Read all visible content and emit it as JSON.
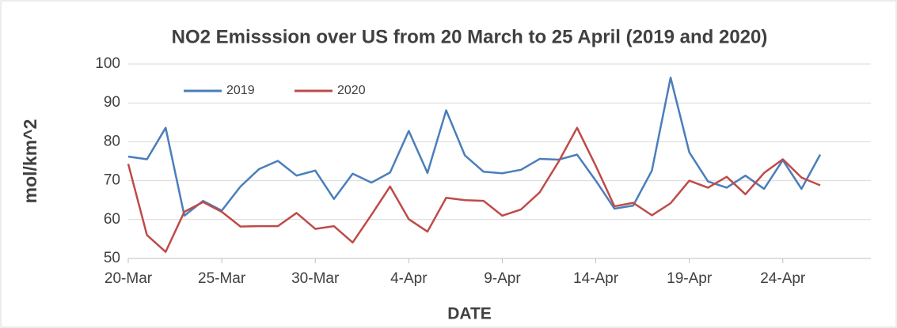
{
  "chart_data": {
    "type": "line",
    "title": "NO2 Emisssion over US from 20 March to 25 April (2019 and 2020)",
    "x_label": "DATE",
    "y_label": "mol/km^2",
    "categories": [
      "20-Mar",
      null,
      null,
      null,
      null,
      "25-Mar",
      null,
      null,
      null,
      null,
      "30-Mar",
      null,
      null,
      null,
      null,
      "4-Apr",
      null,
      null,
      null,
      null,
      "9-Apr",
      null,
      null,
      null,
      null,
      "14-Apr",
      null,
      null,
      null,
      null,
      "19-Apr",
      null,
      null,
      null,
      null,
      "24-Apr",
      null,
      null
    ],
    "series": [
      {
        "name": "2019",
        "color": "#4a7ebb",
        "values": [
          76.2,
          75.5,
          83.6,
          61,
          64.8,
          62.3,
          68.5,
          73,
          75.1,
          71.3,
          72.6,
          65.3,
          71.8,
          69.5,
          72.1,
          82.8,
          72,
          88.1,
          76.5,
          72.3,
          71.9,
          72.8,
          75.6,
          75.4,
          76.7,
          70,
          62.8,
          63.6,
          72.6,
          96.5,
          77.3,
          69.8,
          68.2,
          71.3,
          67.9,
          75.3,
          67.9,
          76.7
        ]
      },
      {
        "name": "2020",
        "color": "#be4b48",
        "values": [
          74.3,
          56,
          51.7,
          62,
          64.5,
          62,
          58.2,
          58.3,
          58.3,
          61.7,
          57.6,
          58.3,
          54.1,
          61.2,
          68.5,
          60.1,
          56.9,
          65.6,
          65,
          64.8,
          61,
          62.6,
          67,
          74.8,
          83.6,
          73.8,
          63.4,
          64.3,
          61.1,
          64.2,
          70,
          68.2,
          71,
          66.5,
          72,
          75.5,
          70.8,
          68.8
        ]
      }
    ],
    "ylim": [
      50,
      100
    ],
    "yticks": [
      50,
      60,
      70,
      80,
      90,
      100
    ],
    "grid": true,
    "legend": "top-left"
  }
}
